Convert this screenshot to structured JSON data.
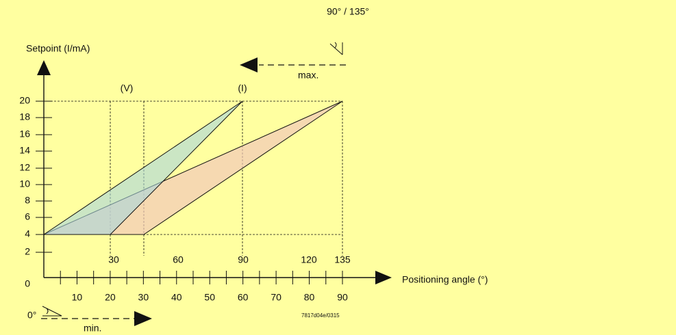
{
  "y_axis": {
    "title": "Setpoint (I/mA)",
    "ticks": [
      "20",
      "18",
      "16",
      "14",
      "12",
      "10",
      "8",
      "6",
      "4",
      "2",
      "0"
    ]
  },
  "x_axis": {
    "title": "Positioning angle (°)",
    "lower_ticks": [
      "10",
      "20",
      "30",
      "40",
      "50",
      "60",
      "70",
      "80",
      "90"
    ],
    "upper_ticks": [
      "30",
      "60",
      "90",
      "120",
      "135"
    ]
  },
  "labels": {
    "v": "(V)",
    "i": "(I)"
  },
  "max_arrow": {
    "angle": "90° / 135°",
    "label": "max."
  },
  "min_arrow": {
    "angle": "0°",
    "label": "min."
  },
  "code": "7817d04e/0315"
}
